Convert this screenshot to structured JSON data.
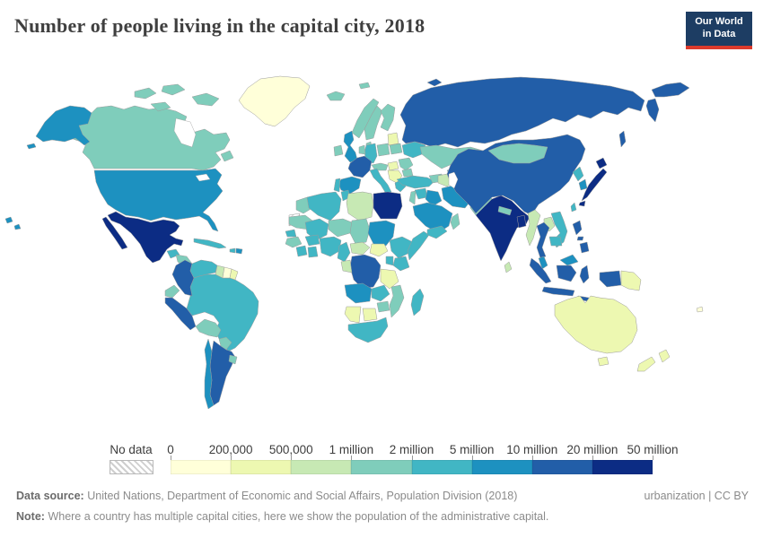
{
  "header": {
    "title": "Number of people living in the capital city, 2018",
    "logo_lines": [
      "Our World",
      "in Data"
    ],
    "logo_bg": "#1d3d63",
    "logo_accent": "#dc3a2c"
  },
  "legend": {
    "no_data_label": "No data",
    "tick_labels": [
      "0",
      "200,000",
      "500,000",
      "1 million",
      "2 million",
      "5 million",
      "10 million",
      "20 million",
      "50 million"
    ],
    "palette": [
      "#ffffd9",
      "#edf8b1",
      "#c7e9b4",
      "#7fcdbb",
      "#41b6c4",
      "#1d91c0",
      "#225ea8",
      "#0c2c84"
    ]
  },
  "footer": {
    "source_label": "Data source:",
    "source_text": "United Nations, Department of Economic and Social Affairs, Population Division (2018)",
    "note_label": "Note:",
    "note_text": "Where a country has multiple capital cities, here we show the population of the administrative capital.",
    "attribution": "urbanization | CC BY"
  },
  "chart_data": {
    "type": "heatmap",
    "variant": "world-choropleth",
    "title": "Number of people living in the capital city, 2018",
    "unit": "people living in the capital city",
    "bin_edges": [
      "0",
      "200,000",
      "500,000",
      "1 million",
      "2 million",
      "5 million",
      "10 million",
      "20 million",
      "50 million"
    ],
    "bin_labels": [
      "0–200,000",
      "200,000–500,000",
      "500,000–1 million",
      "1–2 million",
      "2–5 million",
      "5–10 million",
      "10–20 million",
      "20–50 million"
    ],
    "bin_colors": [
      "#ffffd9",
      "#edf8b1",
      "#c7e9b4",
      "#7fcdbb",
      "#41b6c4",
      "#1d91c0",
      "#225ea8",
      "#0c2c84"
    ],
    "no_data": [
      "western-sahara"
    ],
    "countries": {
      "greenland": 0,
      "canada": 3,
      "usa": 5,
      "mexico": 7,
      "guatemala": 4,
      "honduras-nicaragua": 3,
      "costa-rica-panama": 3,
      "cuba": 4,
      "haiti": 4,
      "dominican-republic": 5,
      "colombia": 6,
      "venezuela": 4,
      "guyana": 2,
      "suriname": 0,
      "french-guiana": 1,
      "ecuador": 3,
      "peru": 6,
      "brazil": 4,
      "bolivia": 3,
      "paraguay": 3,
      "uruguay": 3,
      "argentina": 6,
      "chile": 5,
      "iceland": 3,
      "ireland": 3,
      "uk": 5,
      "norway": 3,
      "sweden": 3,
      "finland": 3,
      "denmark": 3,
      "baltic-states": 1,
      "belarus": 3,
      "poland": 3,
      "germany": 4,
      "benelux": 3,
      "france": 6,
      "spain": 5,
      "portugal": 4,
      "italy": 4,
      "central-europe": 3,
      "hungary": 1,
      "balkans": 1,
      "greece": 4,
      "romania": 3,
      "bulgaria": 3,
      "ukraine": 4,
      "russia": 6,
      "morocco": 3,
      "algeria": 4,
      "tunisia": 4,
      "libya": 2,
      "egypt": 7,
      "mauritania": 3,
      "mali": 4,
      "niger": 3,
      "chad": 3,
      "sudan": 5,
      "senegal": 4,
      "guinea": 3,
      "ivory-coast": 4,
      "ghana": 4,
      "burkina-faso": 4,
      "nigeria": 4,
      "cameroon": 4,
      "central-african-republic": 2,
      "south-sudan": 1,
      "ethiopia": 4,
      "somalia": 4,
      "kenya": 4,
      "uganda": 4,
      "drc": 6,
      "gabon-congo": 2,
      "tanzania": 1,
      "angola": 5,
      "zambia": 4,
      "mozambique": 3,
      "zimbabwe": 3,
      "namibia": 1,
      "botswana": 1,
      "south-africa": 4,
      "madagascar": 4,
      "turkey": 4,
      "syria": 4,
      "levant": 3,
      "iraq": 5,
      "saudi-arabia": 5,
      "yemen": 4,
      "oman": 3,
      "iran": 5,
      "caucasus": 3,
      "kazakhstan": 3,
      "uzbekistan": 4,
      "turkmenistan": 2,
      "kyrgyzstan-tajikistan": 3,
      "afghanistan": 4,
      "pakistan": 3,
      "india": 7,
      "nepal": 3,
      "bangladesh": 7,
      "sri-lanka": 2,
      "myanmar": 2,
      "thailand": 6,
      "laos": 2,
      "vietnam": 4,
      "cambodia": 4,
      "malaysia": 5,
      "indonesia": 6,
      "philippines": 6,
      "china": 6,
      "mongolia": 3,
      "north-korea": 4,
      "south-korea": 5,
      "japan": 7,
      "taiwan": 4,
      "australia": 1,
      "papua-new-guinea": 1,
      "new-zealand": 1,
      "fiji": 0
    }
  }
}
